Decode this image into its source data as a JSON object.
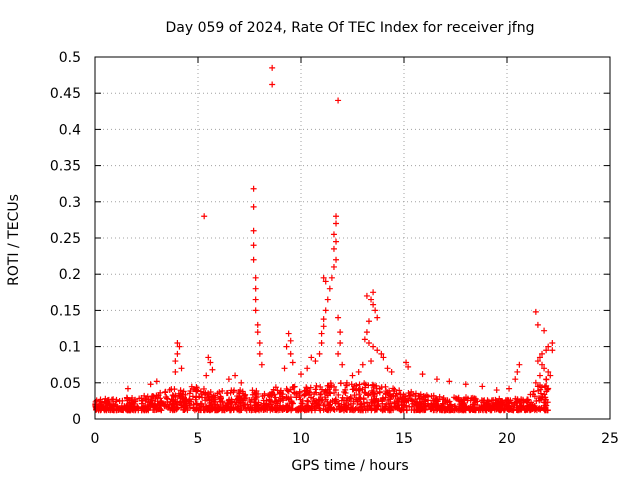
{
  "chart_data": {
    "type": "scatter",
    "title": "Day 059 of 2024, Rate Of TEC Index for receiver jfng",
    "xlabel": "GPS time / hours",
    "ylabel": "ROTI / TECUs",
    "xlim": [
      0,
      25
    ],
    "ylim": [
      0,
      0.5
    ],
    "x_ticks": [
      0,
      5,
      10,
      15,
      20,
      25
    ],
    "x_tick_labels": [
      "0",
      "5",
      "10",
      "15",
      "20",
      "25"
    ],
    "y_ticks": [
      0,
      0.05,
      0.1,
      0.15,
      0.2,
      0.25,
      0.3,
      0.35,
      0.4,
      0.45,
      0.5
    ],
    "y_tick_labels": [
      "0",
      "0.05",
      "0.1",
      "0.15",
      "0.2",
      "0.25",
      "0.3",
      "0.35",
      "0.4",
      "0.45",
      "0.5"
    ],
    "grid": true,
    "marker": "plus",
    "color": "#ff0000",
    "series": [
      {
        "name": "ROTI",
        "background_band": [
          [
            0.0,
            0.012,
            0.028
          ],
          [
            1.0,
            0.012,
            0.03
          ],
          [
            2.0,
            0.012,
            0.03
          ],
          [
            3.0,
            0.012,
            0.035
          ],
          [
            4.0,
            0.012,
            0.045
          ],
          [
            5.0,
            0.012,
            0.045
          ],
          [
            6.0,
            0.012,
            0.04
          ],
          [
            7.0,
            0.012,
            0.04
          ],
          [
            8.0,
            0.012,
            0.04
          ],
          [
            9.0,
            0.012,
            0.045
          ],
          [
            10.0,
            0.012,
            0.045
          ],
          [
            11.0,
            0.012,
            0.05
          ],
          [
            12.0,
            0.012,
            0.05
          ],
          [
            13.0,
            0.012,
            0.05
          ],
          [
            14.0,
            0.012,
            0.045
          ],
          [
            15.0,
            0.012,
            0.04
          ],
          [
            16.0,
            0.012,
            0.035
          ],
          [
            17.0,
            0.012,
            0.03
          ],
          [
            18.0,
            0.012,
            0.03
          ],
          [
            19.0,
            0.012,
            0.028
          ],
          [
            20.0,
            0.012,
            0.028
          ],
          [
            21.0,
            0.012,
            0.03
          ],
          [
            22.0,
            0.012,
            0.06
          ]
        ],
        "points": [
          [
            5.3,
            0.28
          ],
          [
            7.7,
            0.318
          ],
          [
            7.7,
            0.293
          ],
          [
            7.7,
            0.26
          ],
          [
            7.7,
            0.24
          ],
          [
            7.7,
            0.22
          ],
          [
            7.8,
            0.195
          ],
          [
            7.8,
            0.18
          ],
          [
            7.8,
            0.165
          ],
          [
            7.8,
            0.15
          ],
          [
            7.9,
            0.13
          ],
          [
            7.9,
            0.12
          ],
          [
            8.0,
            0.105
          ],
          [
            8.0,
            0.09
          ],
          [
            8.1,
            0.075
          ],
          [
            8.6,
            0.485
          ],
          [
            8.6,
            0.462
          ],
          [
            11.8,
            0.44
          ],
          [
            11.7,
            0.28
          ],
          [
            11.7,
            0.27
          ],
          [
            11.6,
            0.255
          ],
          [
            11.7,
            0.245
          ],
          [
            11.6,
            0.235
          ],
          [
            11.7,
            0.22
          ],
          [
            11.6,
            0.21
          ],
          [
            11.5,
            0.195
          ],
          [
            11.4,
            0.18
          ],
          [
            11.3,
            0.165
          ],
          [
            11.2,
            0.15
          ],
          [
            11.1,
            0.138
          ],
          [
            11.1,
            0.128
          ],
          [
            11.0,
            0.118
          ],
          [
            11.0,
            0.105
          ],
          [
            11.8,
            0.14
          ],
          [
            11.9,
            0.12
          ],
          [
            11.9,
            0.105
          ],
          [
            11.2,
            0.19
          ],
          [
            11.1,
            0.195
          ],
          [
            10.9,
            0.09
          ],
          [
            10.7,
            0.08
          ],
          [
            11.8,
            0.09
          ],
          [
            12.0,
            0.075
          ],
          [
            4.0,
            0.105
          ],
          [
            4.1,
            0.1
          ],
          [
            4.0,
            0.09
          ],
          [
            3.9,
            0.08
          ],
          [
            4.2,
            0.07
          ],
          [
            3.9,
            0.065
          ],
          [
            5.5,
            0.085
          ],
          [
            5.6,
            0.078
          ],
          [
            5.7,
            0.068
          ],
          [
            5.4,
            0.06
          ],
          [
            9.4,
            0.118
          ],
          [
            9.5,
            0.108
          ],
          [
            9.3,
            0.1
          ],
          [
            9.5,
            0.09
          ],
          [
            9.6,
            0.078
          ],
          [
            9.2,
            0.07
          ],
          [
            6.5,
            0.055
          ],
          [
            6.8,
            0.06
          ],
          [
            7.1,
            0.05
          ],
          [
            3.0,
            0.052
          ],
          [
            2.7,
            0.048
          ],
          [
            1.6,
            0.042
          ],
          [
            10.0,
            0.062
          ],
          [
            10.3,
            0.07
          ],
          [
            10.5,
            0.085
          ],
          [
            12.5,
            0.06
          ],
          [
            12.8,
            0.065
          ],
          [
            13.2,
            0.17
          ],
          [
            13.4,
            0.165
          ],
          [
            13.5,
            0.158
          ],
          [
            13.6,
            0.15
          ],
          [
            13.7,
            0.14
          ],
          [
            13.5,
            0.175
          ],
          [
            13.3,
            0.135
          ],
          [
            13.2,
            0.12
          ],
          [
            13.1,
            0.11
          ],
          [
            13.3,
            0.105
          ],
          [
            13.5,
            0.1
          ],
          [
            13.7,
            0.095
          ],
          [
            13.9,
            0.09
          ],
          [
            14.0,
            0.085
          ],
          [
            13.4,
            0.08
          ],
          [
            13.0,
            0.075
          ],
          [
            14.2,
            0.07
          ],
          [
            14.4,
            0.065
          ],
          [
            15.1,
            0.078
          ],
          [
            15.2,
            0.072
          ],
          [
            15.9,
            0.062
          ],
          [
            16.6,
            0.055
          ],
          [
            17.2,
            0.052
          ],
          [
            18.0,
            0.048
          ],
          [
            18.8,
            0.045
          ],
          [
            19.5,
            0.04
          ],
          [
            20.1,
            0.042
          ],
          [
            20.6,
            0.075
          ],
          [
            20.5,
            0.065
          ],
          [
            20.4,
            0.055
          ],
          [
            21.4,
            0.148
          ],
          [
            21.5,
            0.13
          ],
          [
            21.8,
            0.122
          ],
          [
            22.2,
            0.105
          ],
          [
            22.0,
            0.1
          ],
          [
            21.9,
            0.095
          ],
          [
            21.7,
            0.09
          ],
          [
            21.6,
            0.085
          ],
          [
            21.5,
            0.08
          ],
          [
            21.7,
            0.075
          ],
          [
            21.8,
            0.07
          ],
          [
            22.0,
            0.065
          ],
          [
            22.1,
            0.06
          ],
          [
            21.9,
            0.055
          ],
          [
            21.6,
            0.06
          ],
          [
            21.4,
            0.05
          ],
          [
            21.5,
            0.045
          ],
          [
            21.3,
            0.038
          ],
          [
            22.2,
            0.095
          ]
        ]
      }
    ]
  }
}
